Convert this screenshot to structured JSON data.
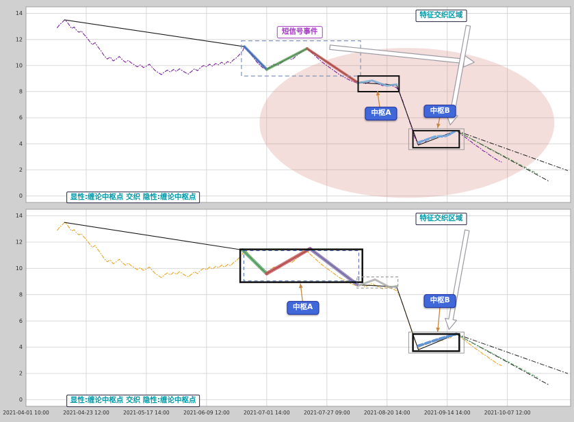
{
  "figure": {
    "bg": "#d0d0d0",
    "panel_bg": "#ffffff",
    "grid": "#d8d8d8",
    "border": "#a0a0a0",
    "tick_text": "#2b2b2b"
  },
  "x_ticks": [
    "2021-04-01 10:00",
    "2021-04-23 12:00",
    "2021-05-17 14:00",
    "2021-06-09 12:00",
    "2021-07-01 14:00",
    "2021-07-27 09:00",
    "2021-08-20 14:00",
    "2021-09-14 14:00",
    "2021-10-07 12:00"
  ],
  "y_ticks": [
    0,
    2,
    4,
    6,
    8,
    10,
    12,
    14
  ],
  "price_points": [
    [
      0.52,
      12.9
    ],
    [
      0.56,
      13.15
    ],
    [
      0.6,
      13.3
    ],
    [
      0.64,
      13.5
    ],
    [
      0.68,
      13.35
    ],
    [
      0.72,
      13.1
    ],
    [
      0.76,
      12.85
    ],
    [
      0.8,
      12.95
    ],
    [
      0.84,
      12.7
    ],
    [
      0.88,
      12.55
    ],
    [
      0.92,
      12.65
    ],
    [
      0.96,
      12.4
    ],
    [
      1.0,
      12.2
    ],
    [
      1.05,
      11.9
    ],
    [
      1.1,
      11.6
    ],
    [
      1.15,
      11.75
    ],
    [
      1.2,
      11.4
    ],
    [
      1.25,
      11.1
    ],
    [
      1.3,
      10.75
    ],
    [
      1.35,
      10.5
    ],
    [
      1.4,
      10.65
    ],
    [
      1.45,
      10.35
    ],
    [
      1.5,
      10.5
    ],
    [
      1.55,
      10.7
    ],
    [
      1.6,
      10.45
    ],
    [
      1.65,
      10.25
    ],
    [
      1.7,
      10.4
    ],
    [
      1.75,
      10.2
    ],
    [
      1.8,
      10.05
    ],
    [
      1.85,
      9.9
    ],
    [
      1.9,
      10.05
    ],
    [
      1.95,
      9.85
    ],
    [
      2.0,
      9.95
    ],
    [
      2.05,
      10.1
    ],
    [
      2.1,
      9.85
    ],
    [
      2.15,
      9.6
    ],
    [
      2.2,
      9.45
    ],
    [
      2.25,
      9.3
    ],
    [
      2.3,
      9.5
    ],
    [
      2.35,
      9.65
    ],
    [
      2.4,
      9.5
    ],
    [
      2.45,
      9.7
    ],
    [
      2.5,
      9.55
    ],
    [
      2.55,
      9.75
    ],
    [
      2.6,
      9.6
    ],
    [
      2.65,
      9.45
    ],
    [
      2.7,
      9.35
    ],
    [
      2.75,
      9.55
    ],
    [
      2.8,
      9.75
    ],
    [
      2.85,
      9.6
    ],
    [
      2.9,
      9.85
    ],
    [
      2.95,
      10.0
    ],
    [
      3.0,
      9.9
    ],
    [
      3.05,
      10.1
    ],
    [
      3.1,
      9.95
    ],
    [
      3.15,
      10.15
    ],
    [
      3.2,
      10.05
    ],
    [
      3.25,
      10.25
    ],
    [
      3.3,
      10.1
    ],
    [
      3.35,
      10.3
    ],
    [
      3.4,
      10.2
    ],
    [
      3.45,
      10.45
    ],
    [
      3.5,
      10.6
    ],
    [
      3.55,
      10.85
    ],
    [
      3.6,
      11.1
    ],
    [
      3.63,
      11.45
    ],
    [
      3.68,
      11.2
    ],
    [
      3.73,
      10.9
    ],
    [
      3.78,
      10.6
    ],
    [
      3.83,
      10.3
    ],
    [
      3.88,
      10.05
    ],
    [
      3.93,
      9.85
    ],
    [
      4.0,
      9.7
    ],
    [
      4.06,
      9.9
    ],
    [
      4.12,
      10.1
    ],
    [
      4.18,
      10.0
    ],
    [
      4.24,
      10.2
    ],
    [
      4.3,
      10.4
    ],
    [
      4.36,
      10.55
    ],
    [
      4.42,
      10.45
    ],
    [
      4.48,
      10.7
    ],
    [
      4.54,
      10.9
    ],
    [
      4.6,
      11.1
    ],
    [
      4.67,
      11.3
    ],
    [
      4.73,
      11.05
    ],
    [
      4.79,
      10.8
    ],
    [
      4.85,
      10.55
    ],
    [
      4.91,
      10.3
    ],
    [
      4.97,
      10.1
    ],
    [
      5.03,
      9.9
    ],
    [
      5.09,
      9.7
    ],
    [
      5.15,
      9.5
    ],
    [
      5.21,
      9.3
    ],
    [
      5.27,
      9.15
    ],
    [
      5.33,
      9.0
    ],
    [
      5.39,
      8.85
    ],
    [
      5.45,
      8.75
    ],
    [
      5.51,
      8.65
    ],
    [
      5.57,
      8.75
    ],
    [
      5.63,
      8.6
    ],
    [
      5.69,
      8.7
    ],
    [
      5.75,
      8.85
    ],
    [
      5.81,
      8.7
    ],
    [
      5.87,
      8.55
    ],
    [
      5.93,
      8.45
    ],
    [
      5.99,
      8.6
    ],
    [
      6.05,
      8.5
    ],
    [
      6.11,
      8.4
    ],
    [
      6.16,
      8.3
    ],
    [
      6.21,
      7.9
    ],
    [
      6.26,
      7.3
    ],
    [
      6.31,
      6.6
    ],
    [
      6.36,
      5.9
    ],
    [
      6.41,
      5.2
    ],
    [
      6.46,
      4.5
    ],
    [
      6.52,
      3.9
    ],
    [
      6.56,
      4.1
    ],
    [
      6.6,
      4.25
    ],
    [
      6.64,
      4.15
    ],
    [
      6.68,
      4.35
    ],
    [
      6.72,
      4.5
    ],
    [
      6.76,
      4.4
    ],
    [
      6.8,
      4.55
    ],
    [
      6.84,
      4.45
    ],
    [
      6.88,
      4.6
    ],
    [
      6.92,
      4.5
    ],
    [
      6.96,
      4.65
    ],
    [
      7.0,
      4.75
    ],
    [
      7.04,
      4.65
    ],
    [
      7.08,
      4.85
    ],
    [
      7.12,
      4.95
    ],
    [
      7.15,
      5.0
    ],
    [
      7.2,
      4.85
    ],
    [
      7.25,
      4.65
    ],
    [
      7.3,
      4.5
    ],
    [
      7.35,
      4.3
    ],
    [
      7.4,
      4.15
    ],
    [
      7.45,
      3.95
    ],
    [
      7.5,
      3.8
    ],
    [
      7.55,
      3.65
    ],
    [
      7.6,
      3.45
    ],
    [
      7.65,
      3.35
    ],
    [
      7.7,
      3.15
    ],
    [
      7.75,
      3.0
    ],
    [
      7.8,
      2.85
    ],
    [
      7.85,
      2.7
    ],
    [
      7.9,
      2.6
    ]
  ],
  "chart_data": [
    {
      "type": "line",
      "panel": "top",
      "xlim": [
        0,
        9.05
      ],
      "ylim": [
        -0.5,
        14.5
      ],
      "grid": true,
      "series": [
        {
          "name": "price-line",
          "color": "#7b219f",
          "width": 1.1,
          "dash": "5 2.5 1 2.5",
          "points": "@price_points"
        },
        {
          "name": "trend-line",
          "color": "#1a1a1a",
          "width": 1.1,
          "points": [
            [
              0.64,
              13.5
            ],
            [
              3.63,
              11.45
            ]
          ]
        },
        {
          "name": "segment-skeleton",
          "color": "#1a1a1a",
          "width": 1.1,
          "points": [
            [
              3.63,
              11.45
            ],
            [
              4.0,
              9.7
            ],
            [
              4.67,
              11.3
            ],
            [
              5.51,
              8.7
            ],
            [
              6.16,
              8.5
            ],
            [
              6.52,
              3.9
            ],
            [
              7.15,
              5.0
            ]
          ]
        },
        {
          "name": "stroke-down-1",
          "color": "#4472c4",
          "width": 4,
          "opacity": 0.75,
          "points": [
            [
              3.63,
              11.45
            ],
            [
              4.0,
              9.7
            ]
          ]
        },
        {
          "name": "stroke-up-1",
          "color": "#5aa05a",
          "width": 4,
          "opacity": 0.75,
          "points": [
            [
              4.0,
              9.7
            ],
            [
              4.67,
              11.3
            ]
          ]
        },
        {
          "name": "stroke-down-2",
          "color": "#c0504d",
          "width": 4,
          "opacity": 0.75,
          "points": [
            [
              4.67,
              11.3
            ],
            [
              5.51,
              8.7
            ]
          ]
        },
        {
          "name": "pivot-a-strokes",
          "color": "#7bafd4",
          "width": 3,
          "opacity": 0.85,
          "points": [
            [
              5.51,
              8.65
            ],
            [
              5.75,
              8.85
            ],
            [
              6.0,
              8.45
            ],
            [
              6.16,
              8.55
            ]
          ]
        },
        {
          "name": "pivot-b-strokes",
          "color": "#6fa8dc",
          "width": 3.5,
          "opacity": 0.95,
          "dash": "6 4",
          "points": [
            [
              6.52,
              4.1
            ],
            [
              6.8,
              4.55
            ],
            [
              6.98,
              4.6
            ],
            [
              7.15,
              5.0
            ]
          ]
        },
        {
          "name": "projection-1",
          "color": "#222222",
          "width": 1,
          "dash": "6 3 1 3",
          "points": [
            [
              7.15,
              5.0
            ],
            [
              8.7,
              1.1
            ]
          ]
        },
        {
          "name": "projection-2",
          "color": "#222222",
          "width": 1,
          "dash": "6 3 1 3",
          "points": [
            [
              7.15,
              5.0
            ],
            [
              9.0,
              1.95
            ]
          ]
        },
        {
          "name": "projection-3",
          "color": "#5aa05a",
          "width": 1,
          "dash": "4 3",
          "points": [
            [
              7.15,
              5.0
            ],
            [
              8.5,
              1.7
            ]
          ]
        }
      ],
      "ellipse": {
        "cx": 6.33,
        "cy": 5.6,
        "rx": 2.45,
        "ry": 5.75,
        "fill": "#d98880",
        "opacity": 0.28
      },
      "boxes": [
        {
          "name": "signal-region-box",
          "x0": 3.58,
          "y0": 9.2,
          "x1": 5.56,
          "y1": 11.9,
          "color": "#7f94b8",
          "width": 1.2,
          "dash": "6 4"
        },
        {
          "name": "pivot-a-box",
          "x0": 5.52,
          "y0": 8.0,
          "x1": 6.2,
          "y1": 9.2,
          "color": "#111111",
          "width": 2
        },
        {
          "name": "pivot-b-outer-box",
          "x0": 6.36,
          "y0": 3.55,
          "x1": 7.28,
          "y1": 5.15,
          "color": "#999999",
          "width": 1
        },
        {
          "name": "pivot-b-box",
          "x0": 6.43,
          "y0": 3.7,
          "x1": 7.2,
          "y1": 5.0,
          "color": "#111111",
          "width": 2
        }
      ],
      "annotations": [
        {
          "name": "signal-event-label",
          "text": "短信号事件",
          "x": 4.55,
          "y": 12.55,
          "style": "purple"
        },
        {
          "name": "feature-region-label",
          "text": "特征交织区域",
          "x": 6.9,
          "y": 13.8,
          "style": "teal"
        },
        {
          "name": "pivot-a-label",
          "text": "中枢A",
          "x": 5.9,
          "y": 6.3,
          "style": "blue"
        },
        {
          "name": "pivot-b-label",
          "text": "中枢B",
          "x": 6.88,
          "y": 6.5,
          "style": "blue"
        },
        {
          "name": "legend-label",
          "text": "显性:缠论中枢点 交织 隐性:缠论中枢点",
          "x": 1.78,
          "y": -0.12,
          "style": "teal"
        }
      ],
      "small_arrows": [
        {
          "from": [
            5.88,
            6.72
          ],
          "to": [
            5.84,
            8.05
          ],
          "color": "#c8873c"
        },
        {
          "from": [
            6.88,
            6.13
          ],
          "to": [
            6.84,
            5.2
          ],
          "color": "#c8873c"
        }
      ],
      "big_arrows": [
        {
          "from": [
            5.05,
            11.4
          ],
          "to": [
            7.45,
            10.25
          ]
        },
        {
          "from": [
            7.35,
            13.05
          ],
          "to": [
            7.05,
            5.45
          ]
        }
      ]
    },
    {
      "type": "line",
      "panel": "bottom",
      "xlim": [
        0,
        9.05
      ],
      "ylim": [
        -0.5,
        14.5
      ],
      "grid": true,
      "series": [
        {
          "name": "price-line",
          "color": "#eba41e",
          "width": 1.1,
          "dash": "5 2.5 1 2.5",
          "points": "@price_points"
        },
        {
          "name": "trend-line",
          "color": "#1a1a1a",
          "width": 1.1,
          "points": [
            [
              0.64,
              13.5
            ],
            [
              3.6,
              11.4
            ]
          ]
        },
        {
          "name": "segment-skeleton",
          "color": "#1a1a1a",
          "width": 1.1,
          "points": [
            [
              3.6,
              11.4
            ],
            [
              4.0,
              9.6
            ],
            [
              4.72,
              11.5
            ],
            [
              5.51,
              8.75
            ],
            [
              6.16,
              8.6
            ],
            [
              6.52,
              3.8
            ],
            [
              7.15,
              5.0
            ]
          ]
        },
        {
          "name": "stroke-down-1",
          "color": "#55a868",
          "width": 5,
          "opacity": 0.8,
          "points": [
            [
              3.6,
              11.4
            ],
            [
              4.0,
              9.6
            ]
          ]
        },
        {
          "name": "stroke-up-1",
          "color": "#c44e52",
          "width": 5,
          "opacity": 0.8,
          "points": [
            [
              4.0,
              9.6
            ],
            [
              4.72,
              11.5
            ]
          ]
        },
        {
          "name": "stroke-down-2",
          "color": "#8172b2",
          "width": 5,
          "opacity": 0.8,
          "points": [
            [
              4.72,
              11.5
            ],
            [
              5.51,
              8.75
            ]
          ]
        },
        {
          "name": "pivot-a-strokes",
          "color": "#b0b0b0",
          "width": 3,
          "opacity": 0.9,
          "points": [
            [
              5.53,
              8.7
            ],
            [
              5.8,
              9.15
            ],
            [
              6.05,
              8.55
            ],
            [
              6.16,
              8.65
            ]
          ]
        },
        {
          "name": "pivot-b-strokes",
          "color": "#5b8fd4",
          "width": 4,
          "opacity": 0.95,
          "dash": "7 4",
          "points": [
            [
              6.52,
              4.1
            ],
            [
              6.85,
              4.6
            ],
            [
              7.15,
              5.0
            ]
          ]
        },
        {
          "name": "projection-1",
          "color": "#222222",
          "width": 1,
          "dash": "6 3 1 3",
          "points": [
            [
              7.15,
              5.0
            ],
            [
              8.7,
              1.1
            ]
          ]
        },
        {
          "name": "projection-2",
          "color": "#222222",
          "width": 1,
          "dash": "6 3 1 3",
          "points": [
            [
              7.15,
              5.0
            ],
            [
              9.0,
              2.0
            ]
          ]
        },
        {
          "name": "projection-3",
          "color": "#55a868",
          "width": 1,
          "dash": "4 3",
          "points": [
            [
              7.15,
              5.0
            ],
            [
              8.5,
              1.7
            ]
          ]
        }
      ],
      "boxes": [
        {
          "name": "pivot-a-box",
          "x0": 3.56,
          "y0": 8.95,
          "x1": 5.59,
          "y1": 11.45,
          "color": "#111111",
          "width": 2.5
        },
        {
          "name": "pivot-a-inner-box",
          "x0": 3.62,
          "y0": 9.05,
          "x1": 5.53,
          "y1": 11.35,
          "color": "#4466aa",
          "width": 1,
          "dash": "5 4"
        },
        {
          "name": "mid-gray-box",
          "x0": 5.5,
          "y0": 8.5,
          "x1": 6.18,
          "y1": 9.35,
          "color": "#999999",
          "width": 1.2,
          "dash": "4 3"
        },
        {
          "name": "pivot-b-outer-box",
          "x0": 6.36,
          "y0": 3.55,
          "x1": 7.28,
          "y1": 5.15,
          "color": "#999999",
          "width": 1
        },
        {
          "name": "pivot-b-box",
          "x0": 6.43,
          "y0": 3.7,
          "x1": 7.2,
          "y1": 5.0,
          "color": "#111111",
          "width": 2.5
        }
      ],
      "annotations": [
        {
          "name": "feature-region-label",
          "text": "特征交织区域",
          "x": 6.9,
          "y": 13.75,
          "style": "teal"
        },
        {
          "name": "pivot-a-label",
          "text": "中枢A",
          "x": 4.6,
          "y": 7.0,
          "style": "blue"
        },
        {
          "name": "pivot-b-label",
          "text": "中枢B",
          "x": 6.88,
          "y": 7.5,
          "style": "blue"
        },
        {
          "name": "legend-label",
          "text": "显性:缠论中枢点 交织 隐性:缠论中枢点",
          "x": 1.78,
          "y": -0.1,
          "style": "teal"
        }
      ],
      "small_arrows": [
        {
          "from": [
            4.6,
            7.35
          ],
          "to": [
            4.56,
            8.85
          ],
          "color": "#c8873c"
        },
        {
          "from": [
            6.88,
            7.1
          ],
          "to": [
            6.84,
            5.15
          ],
          "color": "#c8873c"
        }
      ],
      "big_arrows": [
        {
          "from": [
            7.33,
            12.9
          ],
          "to": [
            7.03,
            5.35
          ]
        }
      ]
    }
  ]
}
